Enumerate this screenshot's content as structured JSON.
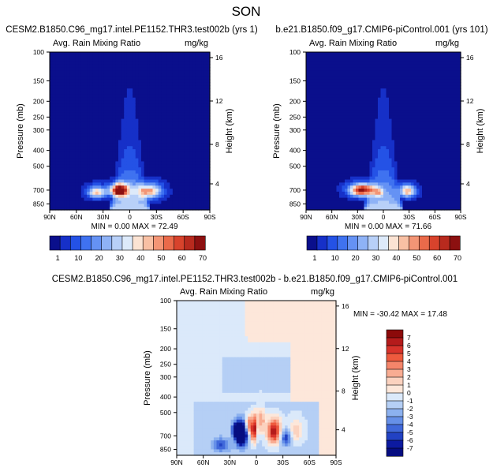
{
  "page_title": "SON",
  "chart_data": [
    {
      "type": "contour",
      "title": "CESM2.B1850.C96_mg17.intel.PE1152.THR3.test002b (yrs 1)",
      "subtitle_left": "Avg. Rain Mixing Ratio",
      "subtitle_right": "mg/kg",
      "ylabel": "Pressure (mb)",
      "ylabel_right": "Height (km)",
      "x_ticks": [
        "90N",
        "60N",
        "30N",
        "0",
        "30S",
        "60S",
        "90S"
      ],
      "y_ticks": [
        "100",
        "150",
        "200",
        "250",
        "300",
        "400",
        "500",
        "700",
        "850"
      ],
      "y_ticks_right": [
        "16",
        "12",
        "8",
        "4"
      ],
      "min_max_text": "MIN =  0.00   MAX =  72.49",
      "min": 0.0,
      "max": 72.49,
      "colorbar_labels": [
        "1",
        "10",
        "20",
        "30",
        "40",
        "50",
        "60",
        "70"
      ]
    },
    {
      "type": "contour",
      "title": "b.e21.B1850.f09_g17.CMIP6-piControl.001 (yrs 101)",
      "subtitle_left": "Avg. Rain Mixing Ratio",
      "subtitle_right": "mg/kg",
      "ylabel": "Pressure (mb)",
      "ylabel_right": "Height (km)",
      "x_ticks": [
        "90N",
        "60N",
        "30N",
        "0",
        "30S",
        "60S",
        "90S"
      ],
      "y_ticks": [
        "100",
        "150",
        "200",
        "250",
        "300",
        "400",
        "500",
        "700",
        "850"
      ],
      "y_ticks_right": [
        "16",
        "12",
        "8",
        "4"
      ],
      "min_max_text": "MIN =  0.00   MAX =  71.66",
      "min": 0.0,
      "max": 71.66,
      "colorbar_labels": [
        "1",
        "10",
        "20",
        "30",
        "40",
        "50",
        "60",
        "70"
      ]
    },
    {
      "type": "contour",
      "title": "CESM2.B1850.C96_mg17.intel.PE1152.THR3.test002b - b.e21.B1850.f09_g17.CMIP6-piControl.001",
      "subtitle_left": "Avg. Rain Mixing Ratio",
      "subtitle_right": "mg/kg",
      "ylabel": "Pressure (mb)",
      "ylabel_right": "Height (km)",
      "x_ticks": [
        "90N",
        "60N",
        "30N",
        "0",
        "30S",
        "60S",
        "90S"
      ],
      "y_ticks": [
        "100",
        "150",
        "200",
        "250",
        "300",
        "400",
        "500",
        "700",
        "850"
      ],
      "y_ticks_right": [
        "16",
        "12",
        "8",
        "4"
      ],
      "min_max_text": "MIN = -30.42   MAX =  17.48",
      "min": -30.42,
      "max": 17.48,
      "colorbar_labels": [
        "7",
        "6",
        "5",
        "4",
        "3",
        "2",
        "1",
        "0",
        "-1",
        "-2",
        "-3",
        "-4",
        "-5",
        "-6",
        "-7"
      ]
    }
  ],
  "colors": {
    "seq": [
      "#0a0f8c",
      "#1630c8",
      "#2452e6",
      "#3f72f0",
      "#6592f4",
      "#8eb2f6",
      "#b8d0f8",
      "#ddeafa",
      "#fbe3d3",
      "#f8c0a4",
      "#f39575",
      "#ea6a4a",
      "#d8432c",
      "#b82a1e",
      "#8c1010"
    ],
    "div": [
      "#8c0a0a",
      "#b51b1b",
      "#d8332b",
      "#ee5a3e",
      "#f5856a",
      "#f8ac92",
      "#fbd2bf",
      "#fde7da",
      "#dbe9fa",
      "#b5cff5",
      "#8cb1ef",
      "#6690e8",
      "#4068da",
      "#2242c4",
      "#0c1aa0",
      "#060d80"
    ]
  }
}
